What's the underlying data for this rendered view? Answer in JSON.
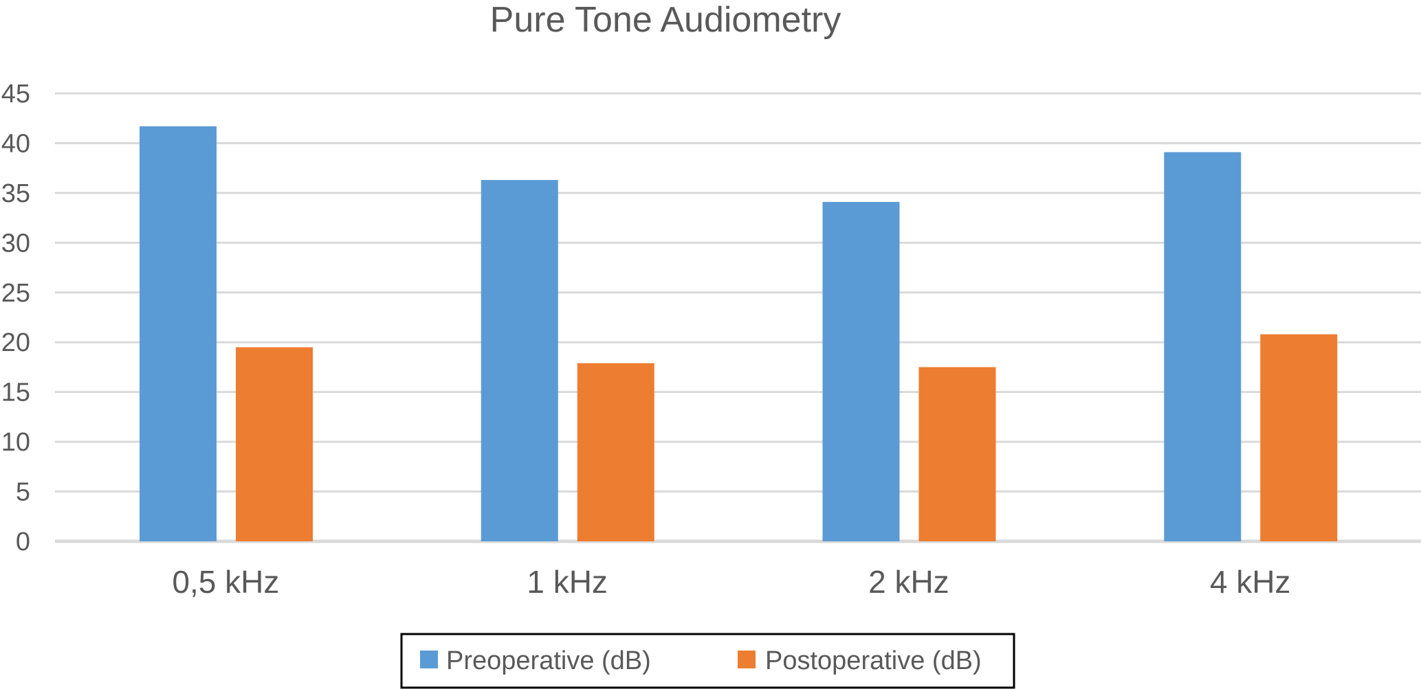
{
  "chart_data": {
    "type": "bar",
    "title": "Pure Tone Audiometry",
    "xlabel": "",
    "ylabel": "",
    "categories": [
      "0,5 kHz",
      "1 kHz",
      "2 kHz",
      "4 kHz"
    ],
    "series": [
      {
        "name": "Preoperative (dB)",
        "color": "#5B9BD5",
        "values": [
          41.7,
          36.3,
          34.1,
          39.1
        ]
      },
      {
        "name": "Postoperative (dB)",
        "color": "#ED7D31",
        "values": [
          19.5,
          17.9,
          17.5,
          20.8
        ]
      }
    ],
    "ylim": [
      0,
      45
    ],
    "yticks": [
      "0",
      "5",
      "10",
      "15",
      "20",
      "25",
      "30",
      "35",
      "40",
      "45"
    ],
    "grid": true,
    "gridColor": "#D9D9D9",
    "legend": "bottom"
  }
}
